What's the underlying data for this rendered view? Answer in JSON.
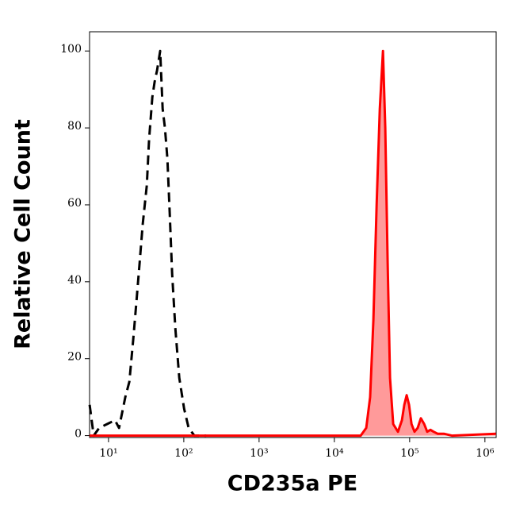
{
  "chart_data": {
    "type": "histogram-overlay",
    "x_label": "CD235a PE",
    "y_label": "Relative Cell Count",
    "log_x": true,
    "xlim": [
      5.6,
      1410000
    ],
    "ylim": [
      -0.5,
      105
    ],
    "xticks": [
      {
        "value": 10,
        "label": "10¹"
      },
      {
        "value": 100,
        "label": "10²"
      },
      {
        "value": 1000,
        "label": "10³"
      },
      {
        "value": 10000,
        "label": "10⁴"
      },
      {
        "value": 100000,
        "label": "10⁵"
      },
      {
        "value": 1000000,
        "label": "10⁶"
      }
    ],
    "yticks": [
      0,
      20,
      40,
      60,
      80,
      100
    ],
    "series": [
      {
        "color": "#000000",
        "dashed": true,
        "x": [
          5.62,
          6.35,
          7.52,
          9.59,
          12.2,
          13.8,
          16.7,
          18.9,
          21.3,
          23.5,
          25.9,
          28.5,
          32.2,
          34.6,
          38.2,
          41.0,
          44.2,
          48.6,
          52.3,
          56.2,
          60.5,
          65.0,
          70.0,
          77.1,
          87.0,
          101,
          116,
          138,
          198
        ],
        "values": [
          8,
          0,
          2,
          3,
          4,
          2,
          10,
          14,
          25,
          35,
          45,
          55,
          65,
          77,
          88,
          92,
          95,
          100,
          85,
          80,
          72,
          58,
          42,
          28,
          15,
          7,
          2,
          0,
          0
        ]
      },
      {
        "color": "#ff0000",
        "fill": "#ff9a9a",
        "dashed": false,
        "x": [
          5.62,
          523,
          22400,
          26500,
          29900,
          33000,
          36400,
          40100,
          44200,
          47500,
          51000,
          54900,
          60500,
          70000,
          78900,
          84900,
          91400,
          98200,
          106000,
          116000,
          128000,
          141000,
          156000,
          171000,
          189000,
          208000,
          235000,
          285000,
          364000,
          1400000
        ],
        "values": [
          0,
          0,
          0,
          2,
          10,
          30,
          60,
          85,
          100,
          80,
          45,
          15,
          3,
          1,
          4,
          8,
          10.5,
          8,
          3,
          1,
          2,
          4.5,
          3,
          1,
          1.5,
          1,
          0.5,
          0.5,
          0,
          0.5
        ]
      }
    ]
  }
}
